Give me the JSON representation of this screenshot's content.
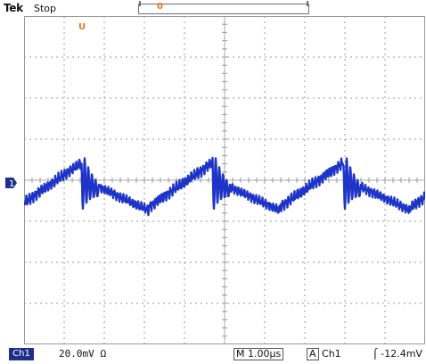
{
  "header": {
    "brand": "Tek",
    "run_status": "Stop",
    "memory_window_marker": "0",
    "trigger_position_marker": "U"
  },
  "screen": {
    "grid_divisions_x": 10,
    "grid_divisions_y": 8,
    "trace_color": "#1e34c8",
    "grid_color": "#9a9a9a",
    "ground_marker_label": "1"
  },
  "footer": {
    "channel": "Ch1",
    "volts_per_div": "20.0mV Ω",
    "timebase": "M 1.00μs",
    "trigger_mode": "A",
    "trigger_source": "Ch1",
    "trigger_slope": "⌠",
    "trigger_level": "-12.4mV"
  }
}
